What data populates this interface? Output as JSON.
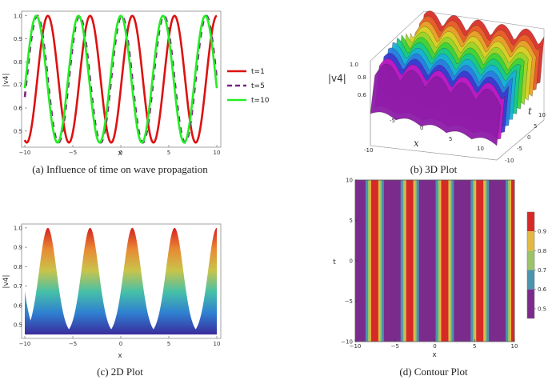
{
  "chart_data": [
    {
      "type": "line",
      "caption": "(a) Influence of time on wave propagation",
      "xlabel": "x",
      "ylabel": "|v4|",
      "xlim": [
        -10,
        10
      ],
      "ylim": [
        0.43,
        1.02
      ],
      "xticks": [
        -10,
        -5,
        0,
        5,
        10
      ],
      "yticks": [
        0.5,
        0.6,
        0.7,
        0.8,
        0.9,
        1.0
      ],
      "xtick_labels": [
        "−10",
        "−5",
        "0",
        "5",
        "10"
      ],
      "ytick_labels": [
        "0.5",
        "0.6",
        "0.7",
        "0.8",
        "0.9",
        "1.0"
      ],
      "wave": {
        "min": 0.45,
        "max": 1.0,
        "period": 4.4
      },
      "series": [
        {
          "name": "t=1",
          "color": "#dd1111",
          "dash": "solid",
          "phase": -7.6
        },
        {
          "name": "t=5",
          "color": "#7b2384",
          "dash": "dashed",
          "phase": -8.7
        },
        {
          "name": "t=10",
          "color": "#22ee22",
          "dash": "solid",
          "phase": -8.8
        }
      ]
    },
    {
      "type": "surface3d",
      "caption": "(b) 3D Plot",
      "xlabel": "x",
      "ylabel": "t",
      "zlabel": "|v4|",
      "xticks": [
        "-5",
        "0",
        "5",
        "10"
      ],
      "x_end_tick": "-10",
      "yticks": [
        "-10",
        "-5",
        "0",
        "5",
        "10"
      ],
      "zticks": [
        "0.8",
        "0.6"
      ],
      "z_top_tick": "1.0"
    },
    {
      "type": "area",
      "caption": "(c) 2D Plot",
      "xlabel": "x",
      "ylabel": "|v4|",
      "xlim": [
        -10,
        10
      ],
      "ylim": [
        0.43,
        1.02
      ],
      "xticks": [
        -10,
        -5,
        0,
        5,
        10
      ],
      "yticks": [
        0.5,
        0.6,
        0.7,
        0.8,
        0.9,
        1.0
      ],
      "xtick_labels": [
        "−10",
        "−5",
        "0",
        "5",
        "10"
      ],
      "ytick_labels": [
        "0.5",
        "0.6",
        "0.7",
        "0.8",
        "0.9",
        "1.0"
      ],
      "base": 0.45,
      "peaks": [
        -7.6,
        -3.2,
        1.2,
        5.6,
        10.0
      ],
      "valley_min": 0.45
    },
    {
      "type": "heatmap",
      "caption": "(d) Contour Plot",
      "xlabel": "x",
      "ylabel": "t",
      "xlim": [
        -10,
        10
      ],
      "ylim": [
        -10,
        10
      ],
      "xticks": [
        -10,
        -5,
        0,
        5,
        10
      ],
      "yticks": [
        -10,
        -5,
        0,
        5,
        10
      ],
      "xtick_labels": [
        "−10",
        "−5",
        "0",
        "5",
        "10"
      ],
      "ytick_labels": [
        "−10",
        "−5",
        "0",
        "5",
        "10"
      ],
      "colorbar": {
        "levels": [
          0.9,
          0.8,
          0.7,
          0.6,
          0.5
        ],
        "colors": [
          "#d62a27",
          "#e3b943",
          "#9bc36a",
          "#4c93ad",
          "#7b2b8c"
        ],
        "range": [
          0.45,
          1.0
        ]
      }
    }
  ]
}
